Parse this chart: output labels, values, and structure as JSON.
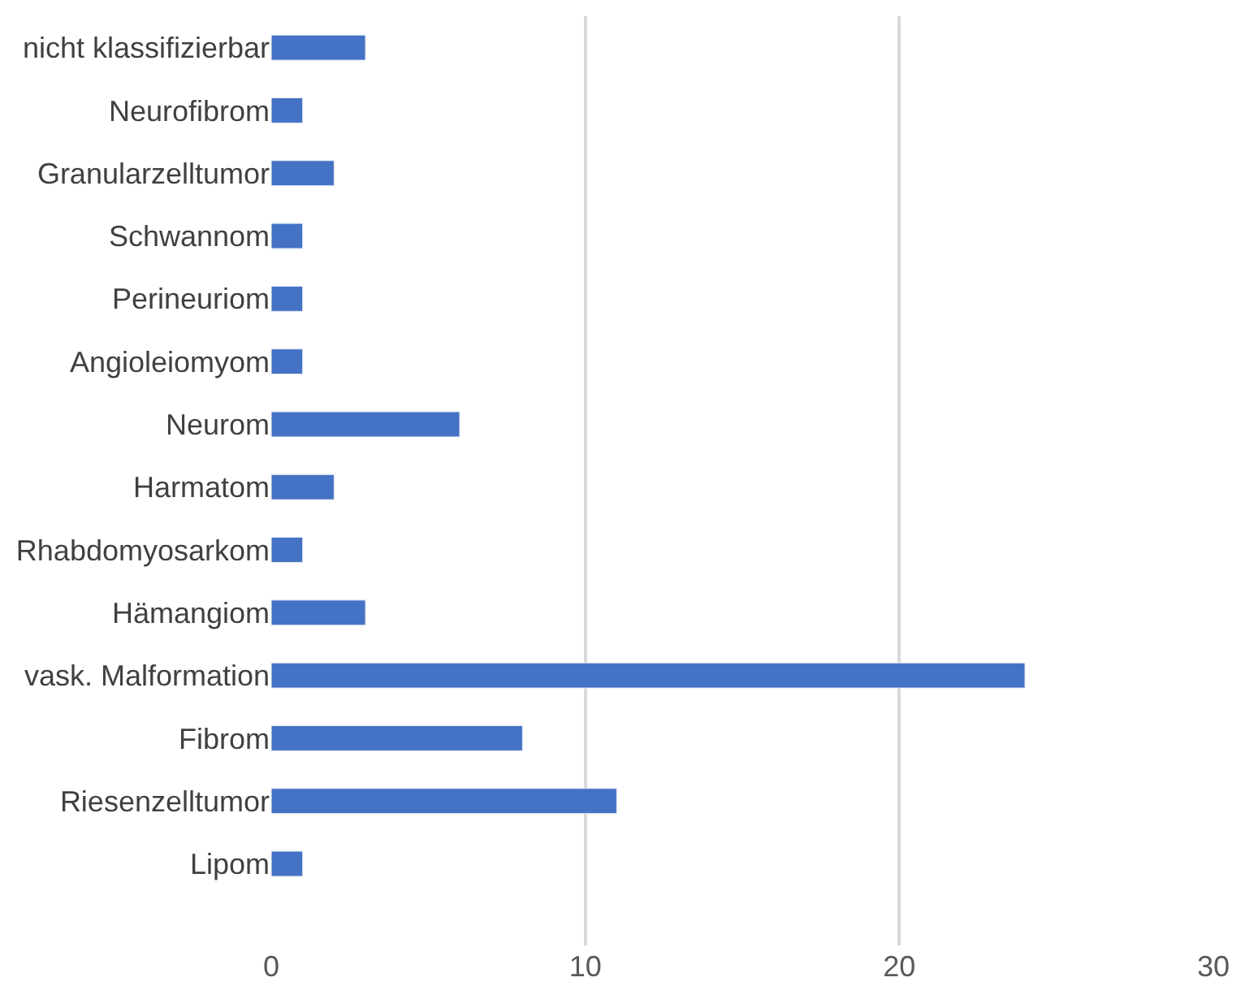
{
  "chart_data": {
    "type": "bar",
    "orientation": "horizontal",
    "categories": [
      "nicht klassifizierbar",
      "Neurofibrom",
      "Granularzelltumor",
      "Schwannom",
      "Perineuriom",
      "Angioleiomyom",
      "Neurom",
      "Harmatom",
      "Rhabdomyosarkom",
      "Hämangiom",
      "vask. Malformation",
      "Fibrom",
      "Riesenzelltumor",
      "Lipom"
    ],
    "values": [
      3,
      1,
      2,
      1,
      1,
      1,
      6,
      2,
      1,
      3,
      24,
      8,
      11,
      1
    ],
    "color": "#4472c4",
    "xlim": [
      0,
      30
    ],
    "xticks": [
      0,
      10,
      20,
      30
    ],
    "grid": "x",
    "legend": false
  }
}
